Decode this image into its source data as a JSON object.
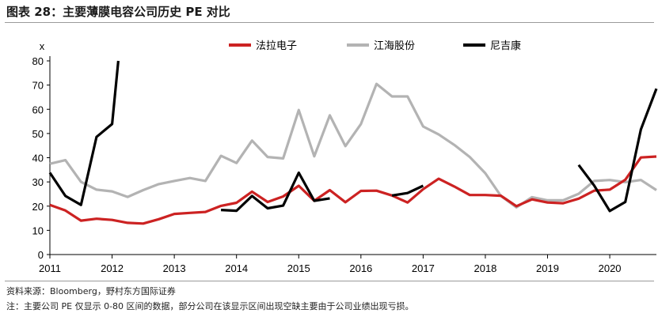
{
  "title": "图表 28：主要薄膜电容公司历史 PE 对比",
  "source": "资料来源：Bloomberg，野村东方国际证券",
  "note": "注：主要公司 PE 仅显示 0-80 区间的数据，部分公司在该显示区间出现空缺主要由于公司业绩出现亏损。",
  "chart_data": {
    "type": "line",
    "ylabel": "x",
    "ylim": [
      0,
      80
    ],
    "yticks": [
      0,
      10,
      20,
      30,
      40,
      50,
      60,
      70,
      80
    ],
    "xlim": [
      2011,
      2020.75
    ],
    "xticks": [
      "2011",
      "2012",
      "2013",
      "2014",
      "2015",
      "2016",
      "2017",
      "2018",
      "2019",
      "2020"
    ],
    "legend_position": "top",
    "series": [
      {
        "name": "法拉电子",
        "color": "#cc2222",
        "points": [
          [
            2011,
            20.5
          ],
          [
            2011.25,
            18.2
          ],
          [
            2011.5,
            14
          ],
          [
            2011.75,
            14.8
          ],
          [
            2012,
            14.3
          ],
          [
            2012.25,
            13.1
          ],
          [
            2012.5,
            12.8
          ],
          [
            2012.75,
            14.6
          ],
          [
            2013,
            16.8
          ],
          [
            2013.25,
            17.2
          ],
          [
            2013.5,
            17.6
          ],
          [
            2013.75,
            20.1
          ],
          [
            2014,
            21.4
          ],
          [
            2014.25,
            26
          ],
          [
            2014.5,
            21.7
          ],
          [
            2014.75,
            24
          ],
          [
            2015,
            28.4
          ],
          [
            2015.25,
            22.2
          ],
          [
            2015.5,
            26.6
          ],
          [
            2015.75,
            21.6
          ],
          [
            2016,
            26.3
          ],
          [
            2016.25,
            26.4
          ],
          [
            2016.5,
            24.4
          ],
          [
            2016.75,
            21.5
          ],
          [
            2017,
            27
          ],
          [
            2017.25,
            31.3
          ],
          [
            2017.5,
            28.1
          ],
          [
            2017.75,
            24.6
          ],
          [
            2018,
            24.6
          ],
          [
            2018.25,
            24.3
          ],
          [
            2018.5,
            20
          ],
          [
            2018.75,
            22.8
          ],
          [
            2019,
            21.5
          ],
          [
            2019.25,
            21.2
          ],
          [
            2019.5,
            23.1
          ],
          [
            2019.75,
            26.4
          ],
          [
            2020,
            26.8
          ],
          [
            2020.25,
            30.9
          ],
          [
            2020.5,
            40.1
          ],
          [
            2020.75,
            40.5
          ]
        ]
      },
      {
        "name": "江海股份",
        "color": "#b3b3b3",
        "points": [
          [
            2011,
            37.5
          ],
          [
            2011.25,
            39
          ],
          [
            2011.5,
            30
          ],
          [
            2011.75,
            26.8
          ],
          [
            2012,
            26.1
          ],
          [
            2012.25,
            23.8
          ],
          [
            2012.5,
            26.6
          ],
          [
            2012.75,
            29.1
          ],
          [
            2013,
            30.4
          ],
          [
            2013.25,
            31.6
          ],
          [
            2013.5,
            30.4
          ],
          [
            2013.75,
            40.8
          ],
          [
            2014,
            37.8
          ],
          [
            2014.25,
            47.1
          ],
          [
            2014.5,
            40.3
          ],
          [
            2014.75,
            39.7
          ],
          [
            2015,
            59.7
          ],
          [
            2015.25,
            40.6
          ],
          [
            2015.5,
            57.5
          ],
          [
            2015.75,
            44.8
          ],
          [
            2016,
            53.9
          ],
          [
            2016.25,
            70.5
          ],
          [
            2016.5,
            65.3
          ],
          [
            2016.75,
            65.3
          ],
          [
            2017,
            52.9
          ],
          [
            2017.25,
            49.6
          ],
          [
            2017.5,
            45.3
          ],
          [
            2017.75,
            40.3
          ],
          [
            2018,
            33.6
          ],
          [
            2018.25,
            24.2
          ],
          [
            2018.5,
            19.5
          ],
          [
            2018.75,
            23.7
          ],
          [
            2019,
            22.4
          ],
          [
            2019.25,
            22.4
          ],
          [
            2019.5,
            25.1
          ],
          [
            2019.75,
            30.4
          ],
          [
            2020,
            30.8
          ],
          [
            2020.25,
            29.9
          ],
          [
            2020.5,
            30.8
          ],
          [
            2020.75,
            26.6
          ]
        ]
      },
      {
        "name": "尼吉康",
        "color": "#000000",
        "segments": [
          [
            [
              2011,
              33.8
            ],
            [
              2011.25,
              24.2
            ],
            [
              2011.5,
              20.5
            ],
            [
              2011.75,
              48.6
            ],
            [
              2012,
              53.9
            ],
            [
              2012.1,
              80
            ]
          ],
          [
            [
              2013.75,
              18.4
            ],
            [
              2014,
              18.1
            ],
            [
              2014.25,
              24.2
            ],
            [
              2014.5,
              19.1
            ],
            [
              2014.75,
              20.2
            ],
            [
              2015,
              33.8
            ],
            [
              2015.25,
              22.2
            ],
            [
              2015.5,
              23.2
            ]
          ],
          [
            [
              2016.5,
              24.4
            ],
            [
              2016.75,
              25.4
            ],
            [
              2017,
              28.4
            ]
          ],
          [
            [
              2019.5,
              37
            ],
            [
              2019.75,
              28.5
            ],
            [
              2020,
              18
            ],
            [
              2020.25,
              21.7
            ],
            [
              2020.5,
              51.7
            ],
            [
              2020.75,
              68.5
            ]
          ]
        ]
      }
    ]
  }
}
